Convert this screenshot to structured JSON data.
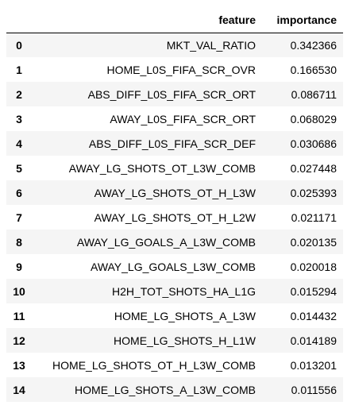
{
  "table": {
    "header": {
      "index_label": "",
      "feature_label": "feature",
      "importance_label": "importance"
    },
    "rows": [
      {
        "index": "0",
        "feature": "MKT_VAL_RATIO",
        "importance": "0.342366"
      },
      {
        "index": "1",
        "feature": "HOME_L0S_FIFA_SCR_OVR",
        "importance": "0.166530"
      },
      {
        "index": "2",
        "feature": "ABS_DIFF_L0S_FIFA_SCR_ORT",
        "importance": "0.086711"
      },
      {
        "index": "3",
        "feature": "AWAY_L0S_FIFA_SCR_ORT",
        "importance": "0.068029"
      },
      {
        "index": "4",
        "feature": "ABS_DIFF_L0S_FIFA_SCR_DEF",
        "importance": "0.030686"
      },
      {
        "index": "5",
        "feature": "AWAY_LG_SHOTS_OT_L3W_COMB",
        "importance": "0.027448"
      },
      {
        "index": "6",
        "feature": "AWAY_LG_SHOTS_OT_H_L3W",
        "importance": "0.025393"
      },
      {
        "index": "7",
        "feature": "AWAY_LG_SHOTS_OT_H_L2W",
        "importance": "0.021171"
      },
      {
        "index": "8",
        "feature": "AWAY_LG_GOALS_A_L3W_COMB",
        "importance": "0.020135"
      },
      {
        "index": "9",
        "feature": "AWAY_LG_GOALS_L3W_COMB",
        "importance": "0.020018"
      },
      {
        "index": "10",
        "feature": "H2H_TOT_SHOTS_HA_L1G",
        "importance": "0.015294"
      },
      {
        "index": "11",
        "feature": "HOME_LG_SHOTS_A_L3W",
        "importance": "0.014432"
      },
      {
        "index": "12",
        "feature": "HOME_LG_SHOTS_H_L1W",
        "importance": "0.014189"
      },
      {
        "index": "13",
        "feature": "HOME_LG_SHOTS_OT_H_L3W_COMB",
        "importance": "0.013201"
      },
      {
        "index": "14",
        "feature": "HOME_LG_SHOTS_A_L3W_COMB",
        "importance": "0.011556"
      }
    ]
  }
}
